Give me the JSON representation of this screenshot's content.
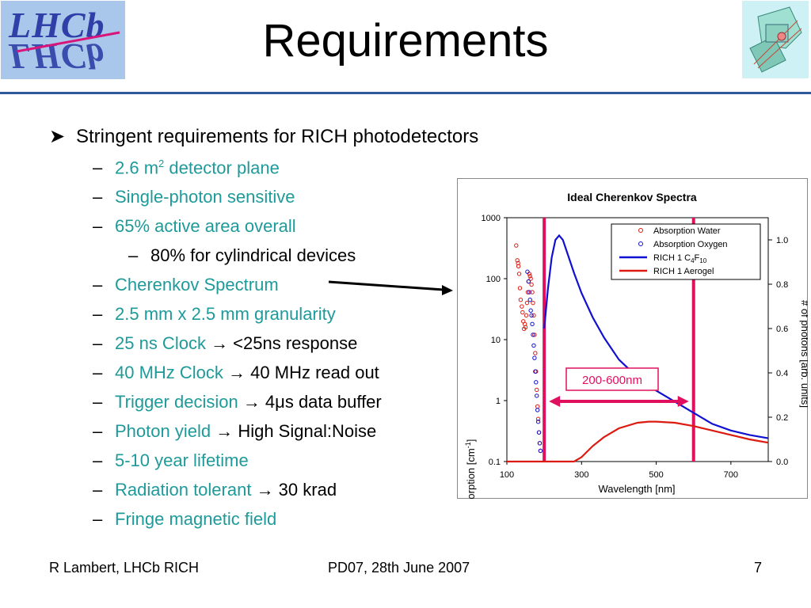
{
  "slide": {
    "title": "Requirements",
    "logo_text": "LHCb",
    "main_bullet": "Stringent requirements for RICH photodetectors",
    "items": [
      {
        "teal": "2.6 m",
        "sup": "2",
        "teal2": " detector plane",
        "black": ""
      },
      {
        "teal": "Single-photon sensitive",
        "black": ""
      },
      {
        "teal": "65% active area overall",
        "black": ""
      },
      {
        "teal": "",
        "black": "80% for cylindrical devices"
      },
      {
        "teal": "Cherenkov Spectrum",
        "black": ""
      },
      {
        "teal": "2.5 mm x 2.5 mm granularity",
        "black": ""
      },
      {
        "teal": "25 ns Clock ",
        "arrow": "→",
        "black": " <25ns response"
      },
      {
        "teal": "40 MHz Clock ",
        "arrow": "→",
        "black": " 40 MHz read out"
      },
      {
        "teal": "Trigger decision ",
        "arrow": "→",
        "black": " 4μs data buffer"
      },
      {
        "teal": "Photon yield ",
        "arrow": "→",
        "black": " High Signal:Noise"
      },
      {
        "teal": "5-10 year lifetime",
        "black": ""
      },
      {
        "teal": "Radiation tolerant ",
        "arrow": "→",
        "black": " 30 krad"
      },
      {
        "teal": "Fringe magnetic field",
        "black": ""
      }
    ],
    "footer": {
      "author": "R Lambert, LHCb RICH",
      "event": "PD07, 28th June 2007",
      "page": "7"
    },
    "colors": {
      "teal": "#1f9a9a",
      "rule": "#30599c",
      "magenta": "#e0105f",
      "blue_curve": "#1010d0",
      "red_curve": "#dd1a10"
    }
  },
  "chart_data": {
    "type": "line",
    "title": "Ideal Cherenkov Spectra",
    "xlabel": "Wavelength [nm]",
    "ylabel_left": "Absorption [cm",
    "ylabel_left_sup": "-1",
    "ylabel_left_end": "]",
    "ylabel_right": "# of photons [arb. units]",
    "xlim": [
      100,
      800
    ],
    "ylim_left_log": [
      0.1,
      1000
    ],
    "ylim_right": [
      0,
      1.1
    ],
    "x_ticks": [
      "100",
      "300",
      "500",
      "700"
    ],
    "y_left_ticks": [
      "0.1",
      "1",
      "10",
      "100",
      "1000"
    ],
    "y_right_ticks": [
      "0.0",
      "0.2",
      "0.4",
      "0.6",
      "0.8",
      "1.0"
    ],
    "annotation": "200-600nm",
    "band": [
      200,
      600
    ],
    "legend": [
      {
        "label": "Absorption Water",
        "kind": "circle",
        "color": "#dd1a10"
      },
      {
        "label": "Absorption Oxygen",
        "kind": "circle",
        "color": "#1010d0"
      },
      {
        "label": "RICH 1 C",
        "sub1": "4",
        "mid": "F",
        "sub2": "10",
        "kind": "line",
        "color": "#1010d0"
      },
      {
        "label": "RICH 1 Aerogel",
        "kind": "line",
        "color": "#dd1a10"
      }
    ],
    "series": [
      {
        "name": "RICH 1 C4F10",
        "axis": "right",
        "color": "#1010d0",
        "x": [
          200,
          210,
          220,
          230,
          240,
          250,
          260,
          280,
          300,
          330,
          360,
          400,
          450,
          500,
          550,
          600,
          650,
          700,
          750,
          800
        ],
        "y": [
          0.6,
          0.78,
          0.92,
          1.0,
          1.02,
          1.0,
          0.95,
          0.85,
          0.76,
          0.65,
          0.56,
          0.46,
          0.38,
          0.32,
          0.27,
          0.22,
          0.17,
          0.14,
          0.12,
          0.105
        ]
      },
      {
        "name": "RICH 1 Aerogel",
        "axis": "right",
        "color": "#dd1a10",
        "x": [
          100,
          200,
          280,
          300,
          330,
          360,
          400,
          450,
          480,
          500,
          550,
          600,
          650,
          700,
          750,
          800
        ],
        "y": [
          0,
          0,
          0,
          0.02,
          0.07,
          0.11,
          0.15,
          0.175,
          0.18,
          0.18,
          0.175,
          0.16,
          0.14,
          0.12,
          0.1,
          0.085
        ]
      },
      {
        "name": "Absorption Water",
        "axis": "left",
        "color": "#dd1a10",
        "marker": "circle",
        "x": [
          125,
          128,
          130,
          131,
          133,
          135,
          137,
          140,
          142,
          144,
          146,
          148,
          150,
          152,
          154,
          156,
          158,
          160,
          162,
          164,
          166,
          168,
          170,
          172,
          174,
          176,
          178,
          180,
          182,
          184,
          186,
          188,
          190
        ],
        "y": [
          350,
          200,
          180,
          160,
          120,
          70,
          45,
          35,
          28,
          20,
          15,
          18,
          16,
          25,
          40,
          60,
          90,
          120,
          110,
          100,
          80,
          60,
          40,
          25,
          12,
          6,
          3,
          1.5,
          0.8,
          0.5,
          0.3,
          0.2,
          0.15
        ]
      },
      {
        "name": "Absorption Oxygen",
        "axis": "left",
        "color": "#1010d0",
        "marker": "circle",
        "x": [
          155,
          158,
          160,
          162,
          164,
          166,
          168,
          170,
          172,
          174,
          176,
          178,
          180,
          182,
          184,
          186,
          188,
          190
        ],
        "y": [
          130,
          90,
          60,
          45,
          30,
          25,
          18,
          12,
          8,
          5,
          3,
          2,
          1.2,
          0.7,
          0.45,
          0.3,
          0.2,
          0.15
        ]
      }
    ]
  }
}
